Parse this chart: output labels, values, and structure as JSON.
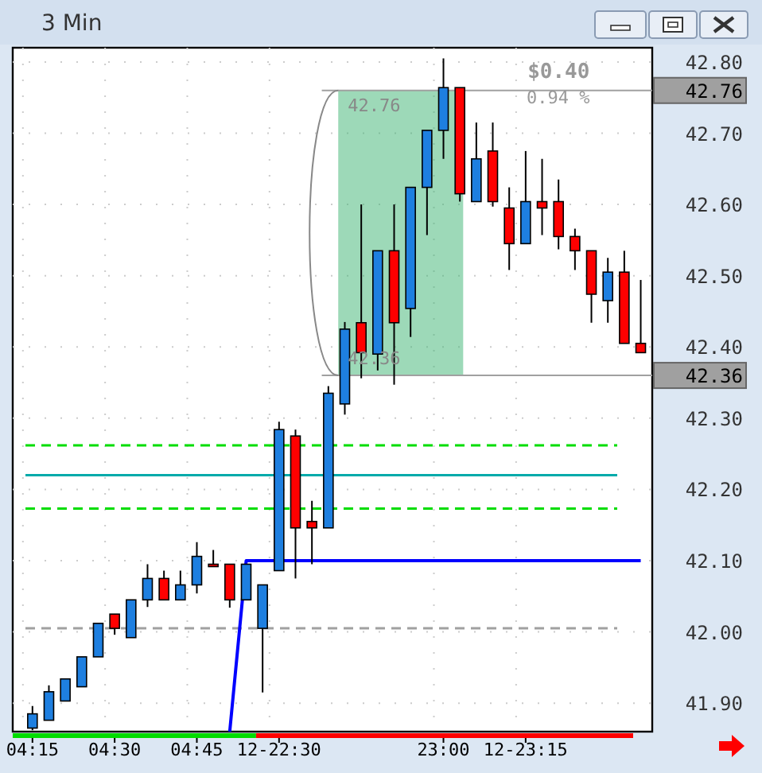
{
  "chart_data": {
    "type": "candlestick",
    "title": "3 Min",
    "categories": [
      "04:15",
      null,
      null,
      null,
      null,
      "04:30",
      null,
      null,
      null,
      null,
      "04:45",
      null,
      null,
      null,
      null,
      "12-22:30",
      null,
      null,
      null,
      null,
      null,
      null,
      null,
      null,
      null,
      "23:00",
      null,
      null,
      null,
      null,
      "12-23:15",
      null,
      null,
      null,
      null,
      null,
      null,
      null
    ],
    "ohlc": [
      [
        41.865,
        41.896,
        41.862,
        41.885
      ],
      [
        41.876,
        41.925,
        41.876,
        41.916
      ],
      [
        41.903,
        41.934,
        41.903,
        41.934
      ],
      [
        41.923,
        41.965,
        41.923,
        41.965
      ],
      [
        41.965,
        42.012,
        41.965,
        42.012
      ],
      [
        42.025,
        42.025,
        41.996,
        42.005
      ],
      [
        41.992,
        42.045,
        41.992,
        42.045
      ],
      [
        42.045,
        42.095,
        42.035,
        42.075
      ],
      [
        42.075,
        42.086,
        42.045,
        42.045
      ],
      [
        42.045,
        42.086,
        42.045,
        42.066
      ],
      [
        42.066,
        42.126,
        42.054,
        42.106
      ],
      [
        42.095,
        42.115,
        42.095,
        42.095
      ],
      [
        42.095,
        42.095,
        42.034,
        42.045
      ],
      [
        42.045,
        42.095,
        42.045,
        42.095
      ],
      [
        42.005,
        42.066,
        41.915,
        42.066
      ],
      [
        42.086,
        42.295,
        42.086,
        42.284
      ],
      [
        42.275,
        42.284,
        42.075,
        42.146
      ],
      [
        42.155,
        42.184,
        42.095,
        42.146
      ],
      [
        42.146,
        42.345,
        42.146,
        42.335
      ],
      [
        42.32,
        42.435,
        42.305,
        42.425
      ],
      [
        42.434,
        42.6,
        42.356,
        42.392
      ],
      [
        42.39,
        42.535,
        42.367,
        42.535
      ],
      [
        42.535,
        42.6,
        42.347,
        42.434
      ],
      [
        42.454,
        42.624,
        42.414,
        42.624
      ],
      [
        42.624,
        42.704,
        42.557,
        42.704
      ],
      [
        42.704,
        42.805,
        42.664,
        42.764
      ],
      [
        42.764,
        42.764,
        42.604,
        42.615
      ],
      [
        42.604,
        42.715,
        42.604,
        42.664
      ],
      [
        42.675,
        42.715,
        42.597,
        42.604
      ],
      [
        42.595,
        42.624,
        42.508,
        42.545
      ],
      [
        42.545,
        42.675,
        42.545,
        42.604
      ],
      [
        42.604,
        42.664,
        42.557,
        42.595
      ],
      [
        42.604,
        42.635,
        42.537,
        42.555
      ],
      [
        42.555,
        42.566,
        42.508,
        42.535
      ],
      [
        42.535,
        42.535,
        42.434,
        42.474
      ],
      [
        42.465,
        42.525,
        42.434,
        42.505
      ],
      [
        42.505,
        42.535,
        42.405,
        42.405
      ],
      [
        42.405,
        42.494,
        42.392,
        42.392
      ]
    ],
    "colors": [
      "#1e7fe0",
      "#1e7fe0",
      "#1e7fe0",
      "#1e7fe0",
      "#1e7fe0",
      "#ff0000",
      "#1e7fe0",
      "#1e7fe0",
      "#ff0000",
      "#1e7fe0",
      "#1e7fe0",
      "#ff0000",
      "#ff0000",
      "#1e7fe0",
      "#1e7fe0",
      "#1e7fe0",
      "#ff0000",
      "#ff0000",
      "#1e7fe0",
      "#1e7fe0",
      "#ff0000",
      "#1e7fe0",
      "#ff0000",
      "#1e7fe0",
      "#1e7fe0",
      "#1e7fe0",
      "#ff0000",
      "#1e7fe0",
      "#ff0000",
      "#ff0000",
      "#1e7fe0",
      "#ff0000",
      "#ff0000",
      "#ff0000",
      "#ff0000",
      "#1e7fe0",
      "#ff0000",
      "#ff0000"
    ],
    "series": [
      {
        "type": "line",
        "color": "#0000ff",
        "values": [
          null,
          null,
          null,
          null,
          null,
          null,
          null,
          null,
          null,
          null,
          null,
          null,
          41.86,
          42.1,
          42.1,
          42.1,
          42.1,
          42.1,
          42.1,
          42.1,
          42.1,
          42.1,
          42.1,
          42.1,
          42.1,
          42.1,
          42.1,
          42.1,
          42.1,
          42.1,
          42.1,
          42.1,
          42.1,
          42.1,
          42.1,
          42.1,
          42.1,
          42.1
        ]
      }
    ],
    "ylim": [
      41.86,
      42.82
    ],
    "yticks": [
      {
        "value": 41.9,
        "label": "41.90"
      },
      {
        "value": 42,
        "label": "42.00"
      },
      {
        "value": 42.1,
        "label": "42.10"
      },
      {
        "value": 42.2,
        "label": "42.20"
      },
      {
        "value": 42.3,
        "label": "42.30"
      },
      {
        "value": 42.4,
        "label": "42.40"
      },
      {
        "value": 42.5,
        "label": "42.50"
      },
      {
        "value": 42.6,
        "label": "42.60"
      },
      {
        "value": 42.7,
        "label": "42.70"
      },
      {
        "value": 42.8,
        "label": "42.80"
      }
    ],
    "grid": true,
    "ref_lines": [
      {
        "axis": "y",
        "value": 42.262,
        "color": "#00dd00",
        "line_style": "dashed"
      },
      {
        "axis": "y",
        "value": 42.22,
        "color": "#00aaaa",
        "line_style": "solid"
      },
      {
        "axis": "y",
        "value": 42.173,
        "color": "#00dd00",
        "line_style": "dashed"
      },
      {
        "axis": "y",
        "value": 42.005,
        "color": "#a0a0a0",
        "line_style": "dashed"
      },
      {
        "axis": "y",
        "value": 42.76,
        "label": "42.76",
        "color": "#a0a0a0",
        "line_style": "solid"
      },
      {
        "axis": "y",
        "value": 42.36,
        "label": "42.36",
        "color": "#a0a0a0",
        "line_style": "solid"
      }
    ],
    "bands": [
      {
        "axis": "y",
        "from": 42.36,
        "to": 42.76,
        "color": "#3cb371"
      }
    ],
    "annotations": [
      {
        "text": "42.76",
        "y": 42.76
      },
      {
        "text": "42.36",
        "y": 42.36
      },
      "$0.40",
      "0.94 %"
    ]
  }
}
